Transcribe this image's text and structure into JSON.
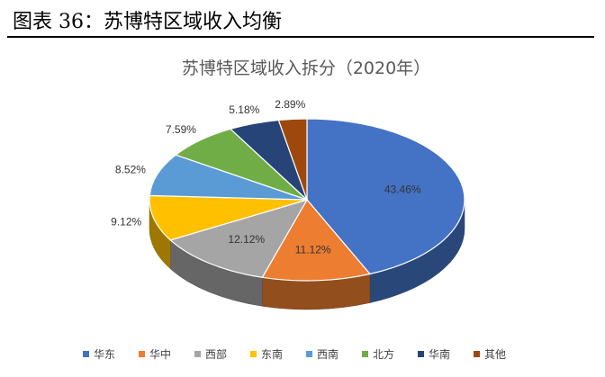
{
  "figure_title": "图表 36：苏博特区域收入均衡",
  "chart_data": {
    "type": "pie",
    "style": "3d-pie",
    "title": "苏博特区域收入拆分（2020年）",
    "legend_position": "bottom",
    "slices": [
      {
        "label": "华东",
        "value": 43.46,
        "display": "43.46%",
        "color": "#4472C4"
      },
      {
        "label": "华中",
        "value": 11.12,
        "display": "11.12%",
        "color": "#ED7D31"
      },
      {
        "label": "西部",
        "value": 12.12,
        "display": "12.12%",
        "color": "#A5A5A5"
      },
      {
        "label": "东南",
        "value": 9.12,
        "display": "9.12%",
        "color": "#FFC000"
      },
      {
        "label": "西南",
        "value": 8.52,
        "display": "8.52%",
        "color": "#5B9BD5"
      },
      {
        "label": "北方",
        "value": 7.59,
        "display": "7.59%",
        "color": "#70AD47"
      },
      {
        "label": "华南",
        "value": 5.18,
        "display": "5.18%",
        "color": "#264478"
      },
      {
        "label": "其他",
        "value": 2.89,
        "display": "2.89%",
        "color": "#9E480E"
      }
    ]
  }
}
